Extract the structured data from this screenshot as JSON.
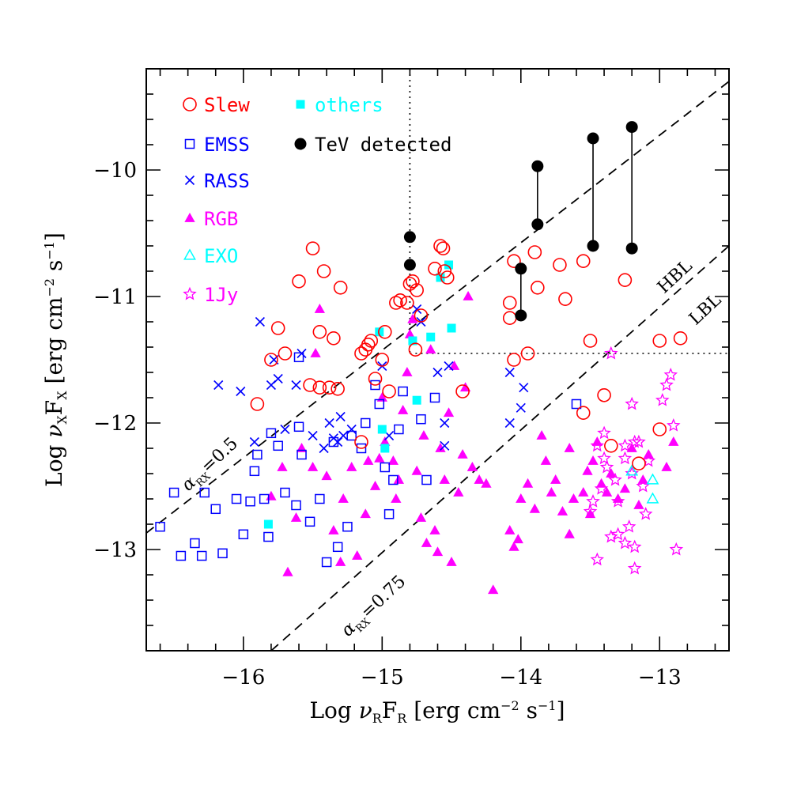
{
  "chart_data": {
    "type": "scatter",
    "xlabel": "Log νRFR [erg cm⁻² s⁻¹]",
    "ylabel": "Log νXFX [erg cm⁻² s⁻¹]",
    "xlim": [
      -16.7,
      -12.5
    ],
    "ylim": [
      -13.8,
      -9.2
    ],
    "x_ticks": [
      "-16",
      "-15",
      "-14",
      "-13"
    ],
    "y_ticks": [
      "-13",
      "-12",
      "-11",
      "-10"
    ],
    "legend_position": "top-left",
    "series": [
      {
        "name": "Slew",
        "marker": "open-circle",
        "color": "#ff0000",
        "points": [
          [
            -15.9,
            -11.85
          ],
          [
            -15.8,
            -11.5
          ],
          [
            -15.7,
            -11.45
          ],
          [
            -15.75,
            -11.25
          ],
          [
            -15.6,
            -10.88
          ],
          [
            -15.5,
            -10.62
          ],
          [
            -15.45,
            -11.28
          ],
          [
            -15.42,
            -10.8
          ],
          [
            -15.35,
            -11.33
          ],
          [
            -15.3,
            -10.93
          ],
          [
            -15.52,
            -11.7
          ],
          [
            -15.45,
            -11.72
          ],
          [
            -15.38,
            -11.72
          ],
          [
            -15.32,
            -11.73
          ],
          [
            -15.1,
            -11.38
          ],
          [
            -15.12,
            -11.42
          ],
          [
            -15.15,
            -11.45
          ],
          [
            -15.08,
            -11.35
          ],
          [
            -15.0,
            -11.5
          ],
          [
            -14.98,
            -11.28
          ],
          [
            -15.05,
            -11.65
          ],
          [
            -14.9,
            -11.05
          ],
          [
            -14.87,
            -11.03
          ],
          [
            -14.95,
            -11.75
          ],
          [
            -15.15,
            -12.15
          ],
          [
            -14.82,
            -11.05
          ],
          [
            -14.8,
            -10.9
          ],
          [
            -14.78,
            -10.88
          ],
          [
            -14.75,
            -10.95
          ],
          [
            -14.76,
            -11.42
          ],
          [
            -14.72,
            -11.15
          ],
          [
            -14.62,
            -10.78
          ],
          [
            -14.58,
            -10.6
          ],
          [
            -14.56,
            -10.62
          ],
          [
            -14.55,
            -10.8
          ],
          [
            -14.53,
            -10.85
          ],
          [
            -14.42,
            -11.75
          ],
          [
            -14.08,
            -11.05
          ],
          [
            -14.08,
            -11.17
          ],
          [
            -14.05,
            -10.72
          ],
          [
            -14.05,
            -11.5
          ],
          [
            -13.95,
            -11.45
          ],
          [
            -13.9,
            -10.65
          ],
          [
            -13.88,
            -10.93
          ],
          [
            -13.72,
            -10.75
          ],
          [
            -13.68,
            -11.02
          ],
          [
            -13.55,
            -10.72
          ],
          [
            -13.5,
            -11.35
          ],
          [
            -13.55,
            -11.92
          ],
          [
            -13.4,
            -11.78
          ],
          [
            -13.35,
            -12.18
          ],
          [
            -13.25,
            -10.87
          ],
          [
            -13.15,
            -12.32
          ],
          [
            -13.0,
            -11.35
          ],
          [
            -13.0,
            -12.05
          ],
          [
            -12.85,
            -11.33
          ]
        ]
      },
      {
        "name": "EMSS",
        "marker": "open-square",
        "color": "#0000ff",
        "points": [
          [
            -16.6,
            -12.82
          ],
          [
            -16.5,
            -12.55
          ],
          [
            -16.45,
            -13.05
          ],
          [
            -16.35,
            -12.95
          ],
          [
            -16.3,
            -13.05
          ],
          [
            -16.28,
            -12.55
          ],
          [
            -16.2,
            -12.68
          ],
          [
            -16.15,
            -13.03
          ],
          [
            -16.05,
            -12.6
          ],
          [
            -16.0,
            -12.88
          ],
          [
            -15.95,
            -12.62
          ],
          [
            -15.92,
            -12.38
          ],
          [
            -15.9,
            -12.25
          ],
          [
            -15.85,
            -12.6
          ],
          [
            -15.82,
            -12.9
          ],
          [
            -15.8,
            -12.08
          ],
          [
            -15.75,
            -12.18
          ],
          [
            -15.7,
            -12.55
          ],
          [
            -15.62,
            -12.65
          ],
          [
            -15.6,
            -12.03
          ],
          [
            -15.58,
            -12.25
          ],
          [
            -15.52,
            -12.78
          ],
          [
            -15.45,
            -12.6
          ],
          [
            -15.4,
            -13.1
          ],
          [
            -15.35,
            -12.15
          ],
          [
            -15.32,
            -12.98
          ],
          [
            -15.25,
            -12.82
          ],
          [
            -15.22,
            -12.1
          ],
          [
            -15.15,
            -12.2
          ],
          [
            -15.12,
            -12.0
          ],
          [
            -15.05,
            -11.7
          ],
          [
            -15.02,
            -11.85
          ],
          [
            -14.98,
            -12.35
          ],
          [
            -14.95,
            -12.72
          ],
          [
            -14.92,
            -12.45
          ],
          [
            -14.88,
            -12.05
          ],
          [
            -14.85,
            -11.75
          ],
          [
            -14.72,
            -11.97
          ],
          [
            -14.68,
            -12.45
          ],
          [
            -15.6,
            -11.48
          ],
          [
            -14.62,
            -11.8
          ],
          [
            -13.6,
            -11.85
          ]
        ]
      },
      {
        "name": "RASS",
        "marker": "cross",
        "color": "#0000ff",
        "points": [
          [
            -16.18,
            -11.7
          ],
          [
            -16.02,
            -11.75
          ],
          [
            -15.92,
            -12.15
          ],
          [
            -15.88,
            -11.2
          ],
          [
            -15.8,
            -11.7
          ],
          [
            -15.78,
            -11.5
          ],
          [
            -15.75,
            -11.65
          ],
          [
            -15.7,
            -12.05
          ],
          [
            -15.62,
            -11.7
          ],
          [
            -15.58,
            -11.45
          ],
          [
            -15.5,
            -12.1
          ],
          [
            -15.42,
            -12.2
          ],
          [
            -15.38,
            -12.0
          ],
          [
            -15.35,
            -12.12
          ],
          [
            -15.32,
            -12.15
          ],
          [
            -15.3,
            -11.95
          ],
          [
            -15.28,
            -12.1
          ],
          [
            -15.22,
            -12.05
          ],
          [
            -15.0,
            -11.55
          ],
          [
            -14.95,
            -12.1
          ],
          [
            -14.75,
            -11.1
          ],
          [
            -14.72,
            -11.2
          ],
          [
            -14.6,
            -11.6
          ],
          [
            -14.52,
            -11.55
          ],
          [
            -14.55,
            -12.0
          ],
          [
            -14.55,
            -12.18
          ],
          [
            -14.08,
            -11.6
          ],
          [
            -14.08,
            -12.0
          ],
          [
            -14.0,
            -11.88
          ],
          [
            -13.98,
            -11.72
          ]
        ]
      },
      {
        "name": "RGB",
        "marker": "filled-triangle",
        "color": "#ff00ff",
        "points": [
          [
            -15.8,
            -12.58
          ],
          [
            -15.72,
            -12.35
          ],
          [
            -15.68,
            -13.18
          ],
          [
            -15.62,
            -12.75
          ],
          [
            -15.58,
            -12.2
          ],
          [
            -15.5,
            -12.35
          ],
          [
            -15.48,
            -11.45
          ],
          [
            -15.45,
            -11.1
          ],
          [
            -15.4,
            -12.42
          ],
          [
            -15.35,
            -12.85
          ],
          [
            -15.3,
            -13.1
          ],
          [
            -15.28,
            -12.6
          ],
          [
            -15.22,
            -12.35
          ],
          [
            -15.18,
            -13.05
          ],
          [
            -15.12,
            -12.72
          ],
          [
            -15.1,
            -12.3
          ],
          [
            -15.05,
            -12.5
          ],
          [
            -15.02,
            -12.28
          ],
          [
            -15.0,
            -11.8
          ],
          [
            -14.98,
            -12.15
          ],
          [
            -14.92,
            -12.3
          ],
          [
            -14.9,
            -12.6
          ],
          [
            -14.88,
            -12.45
          ],
          [
            -14.85,
            -11.9
          ],
          [
            -14.82,
            -11.6
          ],
          [
            -14.8,
            -11.3
          ],
          [
            -14.78,
            -11.18
          ],
          [
            -14.75,
            -12.38
          ],
          [
            -14.72,
            -12.75
          ],
          [
            -14.7,
            -12.1
          ],
          [
            -14.68,
            -12.95
          ],
          [
            -14.65,
            -11.42
          ],
          [
            -14.62,
            -12.85
          ],
          [
            -14.6,
            -13.02
          ],
          [
            -14.58,
            -12.2
          ],
          [
            -14.55,
            -12.45
          ],
          [
            -14.52,
            -11.92
          ],
          [
            -14.5,
            -13.1
          ],
          [
            -14.48,
            -11.55
          ],
          [
            -14.45,
            -12.55
          ],
          [
            -14.42,
            -12.25
          ],
          [
            -14.4,
            -11.72
          ],
          [
            -14.38,
            -11.0
          ],
          [
            -14.35,
            -12.35
          ],
          [
            -14.3,
            -12.45
          ],
          [
            -14.25,
            -12.48
          ],
          [
            -14.2,
            -13.32
          ],
          [
            -14.08,
            -12.85
          ],
          [
            -14.05,
            -12.98
          ],
          [
            -14.02,
            -12.92
          ],
          [
            -14.0,
            -12.6
          ],
          [
            -13.95,
            -12.48
          ],
          [
            -13.9,
            -12.68
          ],
          [
            -13.85,
            -12.1
          ],
          [
            -13.82,
            -12.3
          ],
          [
            -13.78,
            -12.55
          ],
          [
            -13.75,
            -12.45
          ],
          [
            -13.7,
            -12.7
          ],
          [
            -13.65,
            -12.2
          ],
          [
            -13.62,
            -12.6
          ],
          [
            -13.55,
            -12.55
          ],
          [
            -13.52,
            -12.38
          ],
          [
            -13.5,
            -12.72
          ],
          [
            -13.45,
            -12.15
          ],
          [
            -13.42,
            -12.48
          ],
          [
            -13.38,
            -12.55
          ],
          [
            -13.35,
            -12.4
          ],
          [
            -13.3,
            -12.6
          ],
          [
            -13.25,
            -12.52
          ],
          [
            -13.2,
            -12.2
          ],
          [
            -13.15,
            -12.65
          ],
          [
            -13.12,
            -12.45
          ],
          [
            -13.08,
            -12.25
          ],
          [
            -12.95,
            -12.35
          ],
          [
            -12.9,
            -12.15
          ],
          [
            -13.65,
            -12.88
          ],
          [
            -13.48,
            -12.3
          ]
        ]
      },
      {
        "name": "EXO",
        "marker": "open-triangle",
        "color": "#00ffff",
        "points": [
          [
            -13.2,
            -12.38
          ],
          [
            -13.05,
            -12.45
          ],
          [
            -13.05,
            -12.6
          ]
        ]
      },
      {
        "name": "1Jy",
        "marker": "open-star",
        "color": "#ff00ff",
        "points": [
          [
            -13.35,
            -11.45
          ],
          [
            -13.4,
            -12.08
          ],
          [
            -13.4,
            -12.28
          ],
          [
            -13.38,
            -12.35
          ],
          [
            -13.45,
            -12.18
          ],
          [
            -13.32,
            -12.45
          ],
          [
            -13.3,
            -12.62
          ],
          [
            -13.25,
            -12.18
          ],
          [
            -13.25,
            -12.28
          ],
          [
            -13.2,
            -12.4
          ],
          [
            -13.18,
            -12.15
          ],
          [
            -13.15,
            -12.15
          ],
          [
            -13.12,
            -12.5
          ],
          [
            -13.1,
            -12.72
          ],
          [
            -13.08,
            -12.3
          ],
          [
            -13.2,
            -11.85
          ],
          [
            -13.22,
            -12.82
          ],
          [
            -13.18,
            -12.98
          ],
          [
            -13.3,
            -12.88
          ],
          [
            -13.35,
            -12.9
          ],
          [
            -13.45,
            -13.08
          ],
          [
            -13.18,
            -13.15
          ],
          [
            -13.5,
            -12.7
          ],
          [
            -13.48,
            -12.62
          ],
          [
            -13.42,
            -12.52
          ],
          [
            -12.92,
            -11.62
          ],
          [
            -12.95,
            -11.7
          ],
          [
            -12.9,
            -12.02
          ],
          [
            -12.88,
            -13.0
          ],
          [
            -12.98,
            -11.82
          ],
          [
            -13.25,
            -12.95
          ]
        ]
      },
      {
        "name": "others",
        "marker": "filled-square",
        "color": "#00ffff",
        "points": [
          [
            -15.82,
            -12.8
          ],
          [
            -15.02,
            -11.28
          ],
          [
            -15.0,
            -12.05
          ],
          [
            -14.98,
            -12.2
          ],
          [
            -14.78,
            -11.35
          ],
          [
            -14.75,
            -11.82
          ],
          [
            -14.65,
            -11.32
          ],
          [
            -14.58,
            -10.85
          ],
          [
            -14.52,
            -10.75
          ],
          [
            -14.5,
            -11.25
          ]
        ]
      },
      {
        "name": "TeV detected",
        "marker": "filled-circle",
        "color": "#000000",
        "points": [
          [
            -14.8,
            -10.53
          ],
          [
            -14.8,
            -10.75
          ],
          [
            -14.0,
            -10.78
          ],
          [
            -14.0,
            -11.15
          ],
          [
            -13.88,
            -9.97
          ],
          [
            -13.88,
            -10.43
          ],
          [
            -13.48,
            -9.75
          ],
          [
            -13.48,
            -10.6
          ],
          [
            -13.2,
            -9.66
          ],
          [
            -13.2,
            -10.62
          ]
        ],
        "connectors": [
          [
            -14.0,
            -10.78,
            -11.15
          ],
          [
            -13.88,
            -9.97,
            -10.43
          ],
          [
            -13.48,
            -9.75,
            -10.6
          ],
          [
            -13.2,
            -9.66,
            -10.62
          ]
        ]
      }
    ],
    "reference_lines": [
      {
        "label": "αRX=0.5",
        "style": "dashed",
        "from": [
          -16.7,
          -12.87
        ],
        "to": [
          -12.5,
          -9.3
        ]
      },
      {
        "label": "αRX=0.75",
        "style": "dashed",
        "from": [
          -15.8,
          -13.8
        ],
        "to": [
          -12.5,
          -10.6
        ]
      }
    ],
    "region_labels": [
      "HBL",
      "LBL"
    ],
    "threshold_lines": [
      {
        "style": "dotted",
        "from": [
          -14.8,
          -9.2
        ],
        "to": [
          -14.8,
          -11.45
        ]
      },
      {
        "style": "dotted",
        "from": [
          -14.8,
          -11.45
        ],
        "to": [
          -12.5,
          -11.45
        ]
      }
    ]
  }
}
